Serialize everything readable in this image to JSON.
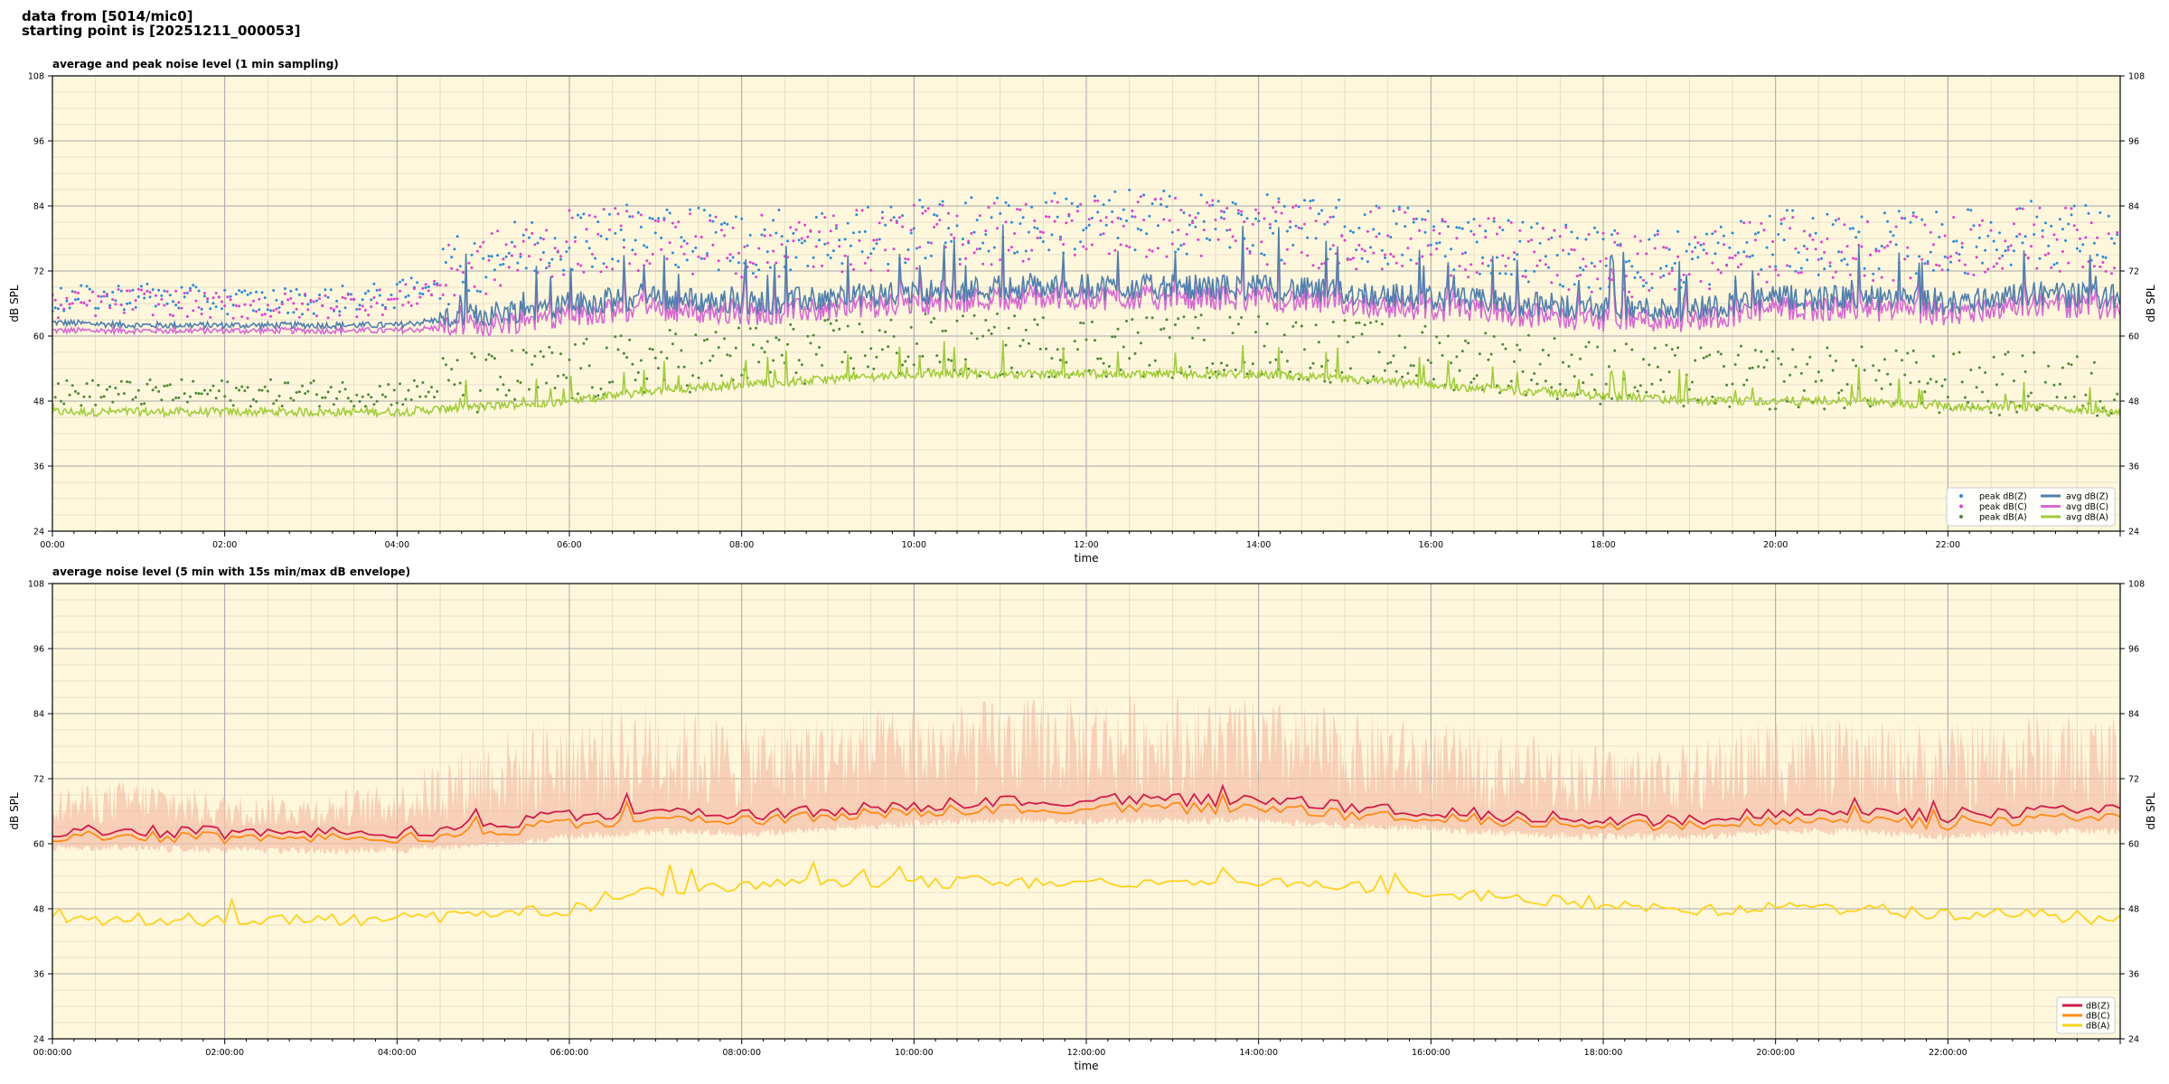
{
  "header": {
    "line1": "data from [5014/mic0]",
    "line2": "starting point is [20251211_000053]"
  },
  "colors": {
    "background": "#fef7dc",
    "grid_major": "#a8a8a8",
    "grid_minor": "#e0d9c4",
    "peak_z": "#2b8cd8",
    "peak_c": "#e040d0",
    "peak_a": "#4e8a3a",
    "avg_z": "#4e7fae",
    "avg_c": "#d669d2",
    "avg_a": "#a2cd3a",
    "env_fill": "#f5bfa8",
    "z5": "#d41c47",
    "c5": "#ff8c14",
    "a5": "#ffd21a"
  },
  "chart_data": [
    {
      "type": "line",
      "title": "average and peak noise level (1 min sampling)",
      "xlabel": "time",
      "ylabel": "dB SPL",
      "ylim": [
        24,
        108
      ],
      "y_ticks": [
        "24",
        "36",
        "48",
        "60",
        "72",
        "84",
        "96",
        "108"
      ],
      "x_range_hours": [
        0,
        24
      ],
      "x_ticks": [
        "00:00",
        "02:00",
        "04:00",
        "06:00",
        "08:00",
        "10:00",
        "12:00",
        "14:00",
        "16:00",
        "18:00",
        "20:00",
        "22:00"
      ],
      "grid": true,
      "legend_position": "lower right",
      "legend": [
        "peak dB(Z)",
        "peak dB(C)",
        "peak dB(A)",
        "avg dB(Z)",
        "avg dB(C)",
        "avg dB(A)"
      ],
      "series": [
        {
          "name": "avg dB(Z)",
          "x": [
            0,
            1,
            2,
            3,
            4,
            5,
            6,
            7,
            8,
            9,
            10,
            11,
            12,
            13,
            14,
            15,
            16,
            17,
            18,
            19,
            20,
            21,
            22,
            23,
            24
          ],
          "values": [
            62.5,
            62,
            62,
            62,
            62,
            64,
            66,
            67,
            66,
            67,
            68,
            69,
            69,
            69,
            69,
            68,
            67,
            66,
            65,
            65,
            67,
            67,
            66,
            68,
            67
          ]
        },
        {
          "name": "avg dB(C)",
          "x": [
            0,
            1,
            2,
            3,
            4,
            5,
            6,
            7,
            8,
            9,
            10,
            11,
            12,
            13,
            14,
            15,
            16,
            17,
            18,
            19,
            20,
            21,
            22,
            23,
            24
          ],
          "values": [
            61,
            61,
            61,
            61,
            61,
            62,
            64,
            65,
            64,
            65,
            66,
            67,
            67,
            67,
            67,
            66,
            65,
            64,
            63,
            63,
            65,
            65,
            64,
            66,
            65
          ]
        },
        {
          "name": "avg dB(A)",
          "x": [
            0,
            1,
            2,
            3,
            4,
            5,
            6,
            7,
            8,
            9,
            10,
            11,
            12,
            13,
            14,
            15,
            16,
            17,
            18,
            19,
            20,
            21,
            22,
            23,
            24
          ],
          "values": [
            46,
            46,
            46,
            46,
            46,
            47,
            48,
            50,
            51,
            52,
            53,
            53,
            53,
            53,
            53,
            52,
            51,
            50,
            49,
            48,
            48,
            48,
            47,
            47,
            46
          ]
        },
        {
          "name": "peak dB(Z)",
          "x": [
            0,
            1,
            2,
            3,
            4,
            5,
            6,
            7,
            8,
            9,
            10,
            11,
            12,
            13,
            14,
            15,
            16,
            17,
            18,
            19,
            20,
            21,
            22,
            23,
            24
          ],
          "values": [
            66,
            67,
            66,
            66,
            67,
            73,
            77,
            78,
            76,
            77,
            78,
            79,
            80,
            80,
            79,
            78,
            77,
            75,
            73,
            73,
            76,
            76,
            76,
            78,
            77
          ]
        },
        {
          "name": "peak dB(C)",
          "x": [
            0,
            1,
            2,
            3,
            4,
            5,
            6,
            7,
            8,
            9,
            10,
            11,
            12,
            13,
            14,
            15,
            16,
            17,
            18,
            19,
            20,
            21,
            22,
            23,
            24
          ],
          "values": [
            65,
            66,
            65,
            65,
            66,
            72,
            76,
            77,
            75,
            76,
            77,
            78,
            79,
            79,
            78,
            77,
            76,
            74,
            72,
            72,
            75,
            75,
            75,
            77,
            76
          ]
        },
        {
          "name": "peak dB(A)",
          "x": [
            0,
            1,
            2,
            3,
            4,
            5,
            6,
            7,
            8,
            9,
            10,
            11,
            12,
            13,
            14,
            15,
            16,
            17,
            18,
            19,
            20,
            21,
            22,
            23,
            24
          ],
          "values": [
            49,
            49,
            49,
            49,
            49,
            50,
            52,
            54,
            55,
            56,
            57,
            57,
            57,
            57,
            57,
            56,
            55,
            54,
            52,
            51,
            51,
            51,
            50,
            50,
            49
          ]
        }
      ]
    },
    {
      "type": "line",
      "title": "average noise level (5 min with 15s min/max dB envelope)",
      "xlabel": "time",
      "ylabel": "dB SPL",
      "ylim": [
        24,
        108
      ],
      "y_ticks": [
        "24",
        "36",
        "48",
        "60",
        "72",
        "84",
        "96",
        "108"
      ],
      "x_range_hours": [
        0,
        24
      ],
      "x_ticks": [
        "00:00:00",
        "02:00:00",
        "04:00:00",
        "06:00:00",
        "08:00:00",
        "10:00:00",
        "12:00:00",
        "14:00:00",
        "16:00:00",
        "18:00:00",
        "20:00:00",
        "22:00:00"
      ],
      "grid": true,
      "legend_position": "lower right",
      "legend": [
        "dB(Z)",
        "dB(C)",
        "dB(A)"
      ],
      "series": [
        {
          "name": "dB(Z)",
          "x": [
            0,
            1,
            2,
            3,
            4,
            5,
            6,
            7,
            8,
            9,
            10,
            11,
            12,
            13,
            14,
            15,
            16,
            17,
            18,
            19,
            20,
            21,
            22,
            23,
            24
          ],
          "values": [
            62.5,
            62.5,
            62,
            62,
            62,
            63.5,
            65,
            66,
            65,
            66,
            67,
            68,
            68,
            68,
            68,
            67,
            66,
            65,
            64.5,
            64.5,
            66,
            66,
            65,
            66,
            66
          ]
        },
        {
          "name": "dB(C)",
          "x": [
            0,
            1,
            2,
            3,
            4,
            5,
            6,
            7,
            8,
            9,
            10,
            11,
            12,
            13,
            14,
            15,
            16,
            17,
            18,
            19,
            20,
            21,
            22,
            23,
            24
          ],
          "values": [
            61.5,
            61.5,
            61,
            61,
            61,
            62,
            63.5,
            64.5,
            64,
            65,
            66,
            66.5,
            66.5,
            66.5,
            66.5,
            65.5,
            65,
            64,
            63.5,
            63.5,
            64.5,
            64.5,
            63.5,
            64.5,
            64.5
          ]
        },
        {
          "name": "dB(A)",
          "x": [
            0,
            1,
            2,
            3,
            4,
            5,
            6,
            7,
            8,
            9,
            10,
            11,
            12,
            13,
            14,
            15,
            16,
            17,
            18,
            19,
            20,
            21,
            22,
            23,
            24
          ],
          "values": [
            46,
            46,
            46,
            46,
            46,
            47,
            48,
            51,
            52,
            53,
            53,
            53,
            53,
            53,
            53,
            52,
            51,
            50,
            49,
            48,
            48,
            48,
            47,
            47,
            46
          ]
        },
        {
          "name": "max envelope",
          "x": [
            0,
            1,
            2,
            3,
            4,
            5,
            6,
            7,
            8,
            9,
            10,
            11,
            12,
            13,
            14,
            15,
            16,
            17,
            18,
            19,
            20,
            21,
            22,
            23,
            24
          ],
          "values": [
            68,
            70,
            67,
            67,
            69,
            78,
            82,
            84,
            80,
            82,
            83,
            84,
            85,
            85,
            84,
            82,
            80,
            78,
            76,
            76,
            82,
            80,
            80,
            82,
            82
          ]
        }
      ]
    }
  ]
}
